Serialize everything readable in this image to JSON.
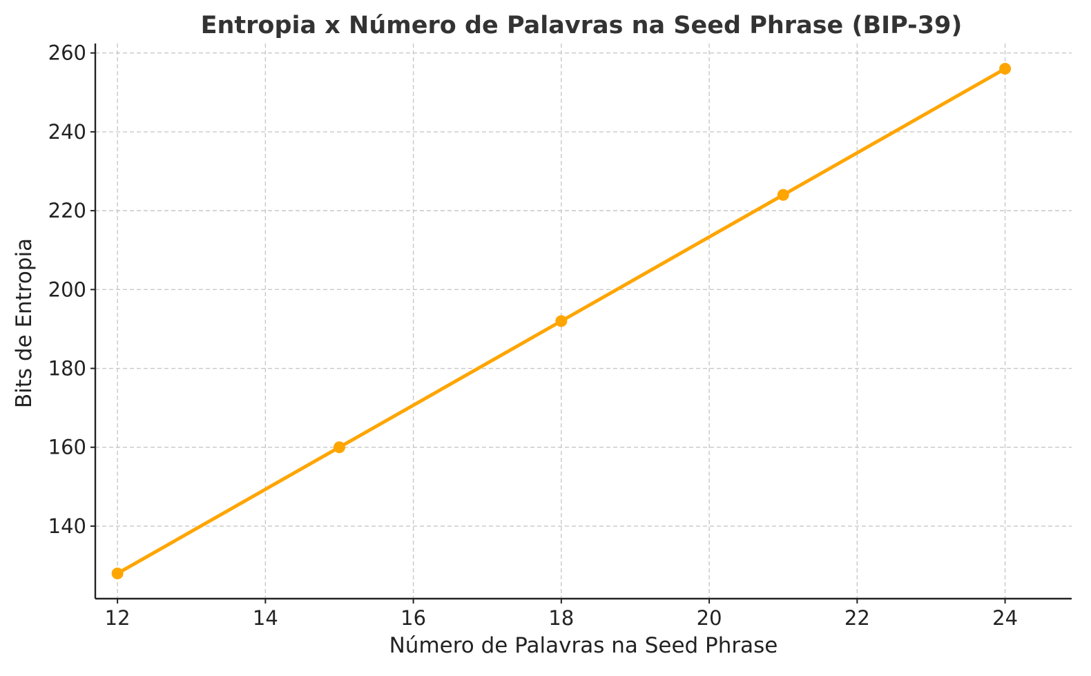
{
  "chart_data": {
    "type": "line",
    "title": "Entropia x Número de Palavras na Seed Phrase (BIP-39)",
    "xlabel": "Número de Palavras na Seed Phrase",
    "ylabel": "Bits de Entropia",
    "x": [
      12,
      15,
      18,
      21,
      24
    ],
    "series": [
      {
        "values": [
          128,
          160,
          192,
          224,
          256
        ],
        "color": "#FFA500",
        "marker": "circle"
      }
    ],
    "xlim": [
      11.7,
      24.9
    ],
    "ylim": [
      121.6,
      262.4
    ],
    "xticks": [
      12,
      14,
      16,
      18,
      20,
      22,
      24
    ],
    "xtick_labels": [
      "12",
      "14",
      "16",
      "18",
      "20",
      "22",
      "24"
    ],
    "yticks": [
      140,
      160,
      180,
      200,
      220,
      240,
      260
    ],
    "ytick_labels": [
      "140",
      "160",
      "180",
      "200",
      "220",
      "240",
      "260"
    ],
    "grid": true,
    "grid_style": "dashed",
    "spines": [
      "left",
      "bottom"
    ]
  }
}
